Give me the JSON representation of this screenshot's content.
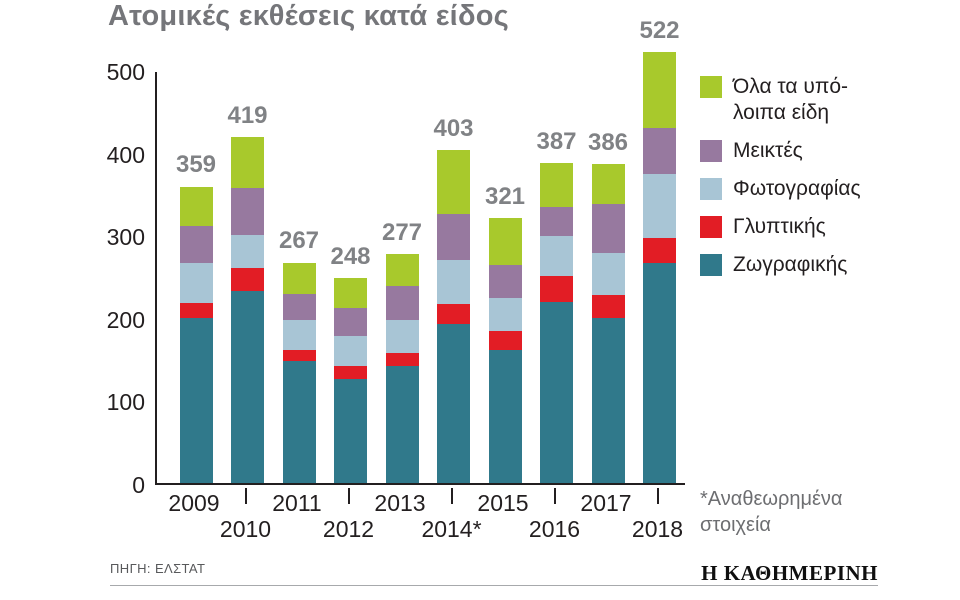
{
  "chart_data": {
    "type": "bar",
    "subtype": "stacked",
    "title": "Ατομικές εκθέσεις κατά είδος",
    "categories": [
      "2009",
      "2010",
      "2011",
      "2012",
      "2013",
      "2014*",
      "2015",
      "2016",
      "2017",
      "2018"
    ],
    "series": [
      {
        "name": "Ζωγραφικής",
        "color": "#30798b",
        "values": [
          200,
          232,
          148,
          126,
          142,
          192,
          161,
          219,
          200,
          266
        ]
      },
      {
        "name": "Γλυπτικής",
        "color": "#e21d25",
        "values": [
          18,
          28,
          13,
          16,
          15,
          25,
          23,
          32,
          28,
          31
        ]
      },
      {
        "name": "Φωτογραφίας",
        "color": "#a8c5d5",
        "values": [
          48,
          40,
          36,
          36,
          40,
          53,
          40,
          48,
          50,
          77
        ]
      },
      {
        "name": "Μεικτές",
        "color": "#97799f",
        "values": [
          45,
          57,
          32,
          34,
          41,
          56,
          40,
          35,
          60,
          56
        ]
      },
      {
        "name": "Όλα τα υπόλοιπα είδη",
        "legend_label": "Όλα τα υπό-\nλοιπα είδη",
        "color": "#a8c92c",
        "values": [
          48,
          62,
          38,
          36,
          39,
          77,
          57,
          53,
          48,
          92
        ]
      }
    ],
    "totals": [
      359,
      419,
      267,
      248,
      277,
      403,
      321,
      387,
      386,
      522
    ],
    "yticks": [
      0,
      100,
      200,
      300,
      400,
      500
    ],
    "ylim": [
      0,
      500
    ],
    "grid": false,
    "legend_position": "right",
    "legend_order": "reversed",
    "footnote": "*Αναθεωρημένα\nστοιχεία"
  },
  "source": {
    "label": "ΠΗΓΗ: ΕΛΣΤΑΤ"
  },
  "logo": {
    "text": "Η ΚΑΘΗΜΕΡΙΝΗ"
  }
}
